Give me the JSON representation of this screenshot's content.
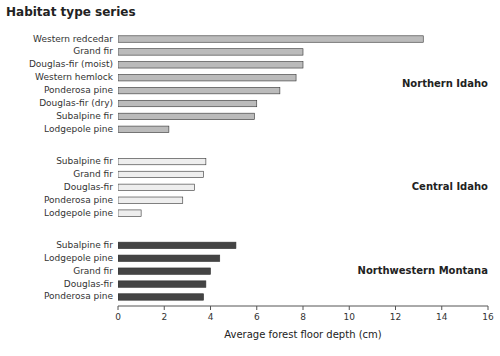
{
  "chart_data": {
    "type": "bar",
    "orientation": "horizontal",
    "title": "Habitat type series",
    "xlabel": "Average forest floor depth (cm)",
    "xlim": [
      0,
      16
    ],
    "xticks": [
      0,
      2,
      4,
      6,
      8,
      10,
      12,
      14,
      16
    ],
    "grid": false,
    "series": [
      {
        "name": "Northern Idaho",
        "color": "#bbbbbb",
        "categories": [
          "Western redcedar",
          "Grand fir",
          "Douglas-fir (moist)",
          "Western hemlock",
          "Ponderosa pine",
          "Douglas-fir (dry)",
          "Subalpine fir",
          "Lodgepole pine"
        ],
        "values": [
          13.2,
          8.0,
          8.0,
          7.7,
          7.0,
          6.0,
          5.9,
          2.2
        ]
      },
      {
        "name": "Central Idaho",
        "color": "#eeeeee",
        "categories": [
          "Subalpine fir",
          "Grand fir",
          "Douglas-fir",
          "Ponderosa pine",
          "Lodgepole pine"
        ],
        "values": [
          3.8,
          3.7,
          3.3,
          2.8,
          1.0
        ]
      },
      {
        "name": "Northwestern Montana",
        "color": "#444444",
        "categories": [
          "Subalpine fir",
          "Lodgepole pine",
          "Grand fir",
          "Douglas-fir",
          "Ponderosa pine"
        ],
        "values": [
          5.1,
          4.4,
          4.0,
          3.8,
          3.7
        ]
      }
    ]
  }
}
